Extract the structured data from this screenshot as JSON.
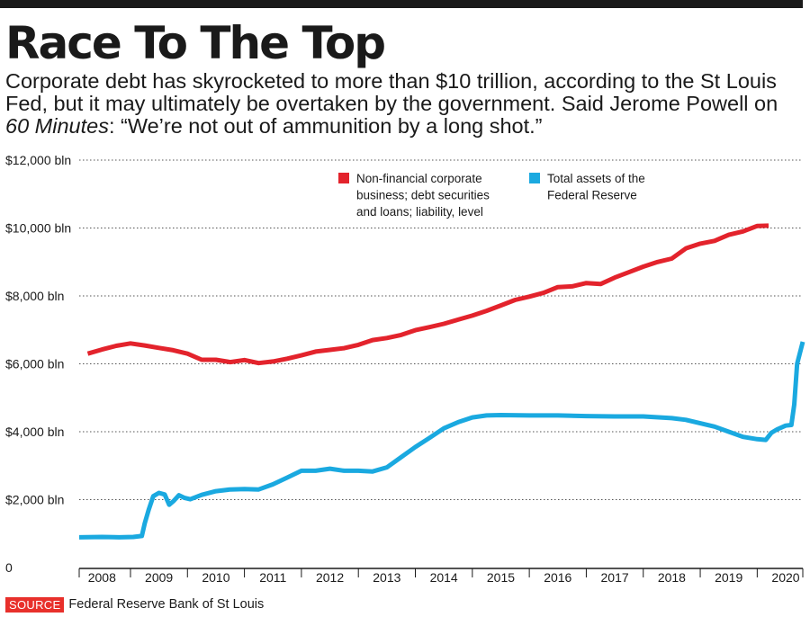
{
  "header": {
    "title": "Race To The Top",
    "subtitle_part1": "Corporate debt has skyrocketed to more than $10 trillion, according to the St Louis Fed, but it may ultimately be overtaken by the government. Said Jerome Powell on ",
    "subtitle_italic": "60 Minutes",
    "subtitle_part2": ": “We’re not out of ammunition by a long shot.”"
  },
  "source": {
    "label": "SOURCE",
    "text": "Federal Reserve Bank of St Louis"
  },
  "colors": {
    "corporate": "#e3232c",
    "fed": "#1aa9e0",
    "source_tag": "#e8302b",
    "text": "#1a1a1a",
    "grid": "#555555"
  },
  "chart_data": {
    "type": "line",
    "title": "Race To The Top",
    "xlabel": "",
    "ylabel": "",
    "xlim": [
      2007.6,
      2020.3
    ],
    "ylim": [
      0,
      12000
    ],
    "grid": true,
    "legend_position": "top-center",
    "y_ticks": [
      {
        "value": 0,
        "label": "0"
      },
      {
        "value": 2000,
        "label": "$2,000 bln"
      },
      {
        "value": 4000,
        "label": "$4,000 bln"
      },
      {
        "value": 6000,
        "label": "$6,000 bln"
      },
      {
        "value": 8000,
        "label": "$8,000 bln"
      },
      {
        "value": 10000,
        "label": "$10,000 bln"
      },
      {
        "value": 12000,
        "label": "$12,000 bln"
      }
    ],
    "x_ticks": [
      {
        "value": 2008,
        "label": "2008"
      },
      {
        "value": 2009,
        "label": "2009"
      },
      {
        "value": 2010,
        "label": "2010"
      },
      {
        "value": 2011,
        "label": "2011"
      },
      {
        "value": 2012,
        "label": "2012"
      },
      {
        "value": 2013,
        "label": "2013"
      },
      {
        "value": 2014,
        "label": "2014"
      },
      {
        "value": 2015,
        "label": "2015"
      },
      {
        "value": 2016,
        "label": "2016"
      },
      {
        "value": 2017,
        "label": "2017"
      },
      {
        "value": 2018,
        "label": "2018"
      },
      {
        "value": 2019,
        "label": "2019"
      },
      {
        "value": 2020,
        "label": "2020"
      }
    ],
    "series": [
      {
        "name": "Non-financial corporate business; debt securities and loans; liability, level",
        "legend_lines": [
          "Non-financial corporate",
          "business; debt securities",
          "and loans; liability, level"
        ],
        "color": "#e3232c",
        "points": [
          [
            2007.75,
            6300
          ],
          [
            2008.0,
            6420
          ],
          [
            2008.25,
            6530
          ],
          [
            2008.5,
            6600
          ],
          [
            2008.75,
            6540
          ],
          [
            2009.0,
            6470
          ],
          [
            2009.25,
            6400
          ],
          [
            2009.5,
            6300
          ],
          [
            2009.75,
            6120
          ],
          [
            2010.0,
            6120
          ],
          [
            2010.25,
            6050
          ],
          [
            2010.5,
            6110
          ],
          [
            2010.75,
            6020
          ],
          [
            2011.0,
            6070
          ],
          [
            2011.25,
            6150
          ],
          [
            2011.5,
            6250
          ],
          [
            2011.75,
            6360
          ],
          [
            2012.0,
            6410
          ],
          [
            2012.25,
            6460
          ],
          [
            2012.5,
            6560
          ],
          [
            2012.75,
            6700
          ],
          [
            2013.0,
            6760
          ],
          [
            2013.25,
            6850
          ],
          [
            2013.5,
            6990
          ],
          [
            2013.75,
            7080
          ],
          [
            2014.0,
            7180
          ],
          [
            2014.25,
            7300
          ],
          [
            2014.5,
            7420
          ],
          [
            2014.75,
            7560
          ],
          [
            2015.0,
            7720
          ],
          [
            2015.25,
            7880
          ],
          [
            2015.5,
            7980
          ],
          [
            2015.75,
            8090
          ],
          [
            2016.0,
            8260
          ],
          [
            2016.25,
            8280
          ],
          [
            2016.5,
            8380
          ],
          [
            2016.75,
            8350
          ],
          [
            2017.0,
            8540
          ],
          [
            2017.25,
            8700
          ],
          [
            2017.5,
            8860
          ],
          [
            2017.75,
            9000
          ],
          [
            2018.0,
            9100
          ],
          [
            2018.25,
            9400
          ],
          [
            2018.5,
            9540
          ],
          [
            2018.75,
            9620
          ],
          [
            2019.0,
            9800
          ],
          [
            2019.25,
            9900
          ],
          [
            2019.5,
            10060
          ],
          [
            2019.7,
            10070
          ]
        ]
      },
      {
        "name": "Total assets of the Federal Reserve",
        "legend_lines": [
          "Total assets of the",
          "Federal Reserve"
        ],
        "color": "#1aa9e0",
        "points": [
          [
            2007.6,
            890
          ],
          [
            2008.0,
            900
          ],
          [
            2008.3,
            890
          ],
          [
            2008.55,
            900
          ],
          [
            2008.7,
            930
          ],
          [
            2008.75,
            1300
          ],
          [
            2008.82,
            1700
          ],
          [
            2008.9,
            2100
          ],
          [
            2009.0,
            2200
          ],
          [
            2009.1,
            2150
          ],
          [
            2009.18,
            1850
          ],
          [
            2009.25,
            1950
          ],
          [
            2009.35,
            2130
          ],
          [
            2009.45,
            2050
          ],
          [
            2009.55,
            2010
          ],
          [
            2009.75,
            2140
          ],
          [
            2010.0,
            2250
          ],
          [
            2010.25,
            2300
          ],
          [
            2010.5,
            2310
          ],
          [
            2010.75,
            2300
          ],
          [
            2011.0,
            2450
          ],
          [
            2011.25,
            2650
          ],
          [
            2011.5,
            2850
          ],
          [
            2011.75,
            2850
          ],
          [
            2012.0,
            2910
          ],
          [
            2012.25,
            2850
          ],
          [
            2012.5,
            2850
          ],
          [
            2012.75,
            2830
          ],
          [
            2013.0,
            2950
          ],
          [
            2013.25,
            3250
          ],
          [
            2013.5,
            3550
          ],
          [
            2013.75,
            3820
          ],
          [
            2014.0,
            4100
          ],
          [
            2014.25,
            4280
          ],
          [
            2014.5,
            4420
          ],
          [
            2014.75,
            4480
          ],
          [
            2015.0,
            4490
          ],
          [
            2015.5,
            4480
          ],
          [
            2016.0,
            4480
          ],
          [
            2016.5,
            4460
          ],
          [
            2017.0,
            4450
          ],
          [
            2017.5,
            4450
          ],
          [
            2018.0,
            4400
          ],
          [
            2018.25,
            4350
          ],
          [
            2018.5,
            4250
          ],
          [
            2018.75,
            4150
          ],
          [
            2019.0,
            4000
          ],
          [
            2019.25,
            3850
          ],
          [
            2019.5,
            3780
          ],
          [
            2019.65,
            3760
          ],
          [
            2019.75,
            3970
          ],
          [
            2019.85,
            4070
          ],
          [
            2020.0,
            4180
          ],
          [
            2020.1,
            4200
          ],
          [
            2020.15,
            4800
          ],
          [
            2020.2,
            6000
          ],
          [
            2020.3,
            6650
          ]
        ]
      }
    ]
  }
}
